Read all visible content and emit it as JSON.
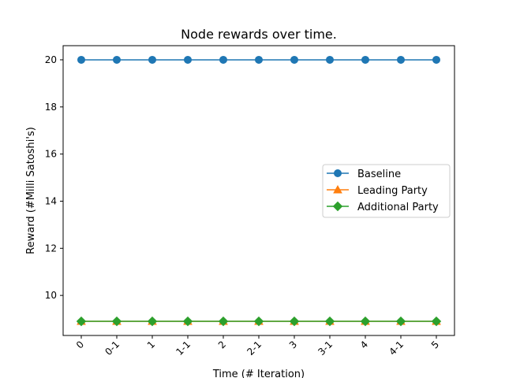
{
  "chart_data": {
    "type": "line",
    "title": "Node rewards over time.",
    "xlabel": "Time (# Iteration)",
    "ylabel": "Reward (#Milli Satoshi's)",
    "categories": [
      "0",
      "0-1",
      "1",
      "1-1",
      "2",
      "2-1",
      "3",
      "3-1",
      "4",
      "4-1",
      "5"
    ],
    "yticks": [
      10,
      12,
      14,
      16,
      18,
      20
    ],
    "ylim": [
      8.3,
      20.6
    ],
    "grid": false,
    "legend_position": "center-right",
    "series": [
      {
        "name": "Baseline",
        "color": "#1f77b4",
        "marker": "circle",
        "values": [
          20,
          20,
          20,
          20,
          20,
          20,
          20,
          20,
          20,
          20,
          20
        ]
      },
      {
        "name": "Leading Party",
        "color": "#ff7f0e",
        "marker": "triangle",
        "values": [
          8.9,
          8.9,
          8.9,
          8.9,
          8.9,
          8.9,
          8.9,
          8.9,
          8.9,
          8.9,
          8.9
        ]
      },
      {
        "name": "Additional Party",
        "color": "#2ca02c",
        "marker": "diamond",
        "values": [
          8.9,
          8.9,
          8.9,
          8.9,
          8.9,
          8.9,
          8.9,
          8.9,
          8.9,
          8.9,
          8.9
        ]
      }
    ]
  }
}
